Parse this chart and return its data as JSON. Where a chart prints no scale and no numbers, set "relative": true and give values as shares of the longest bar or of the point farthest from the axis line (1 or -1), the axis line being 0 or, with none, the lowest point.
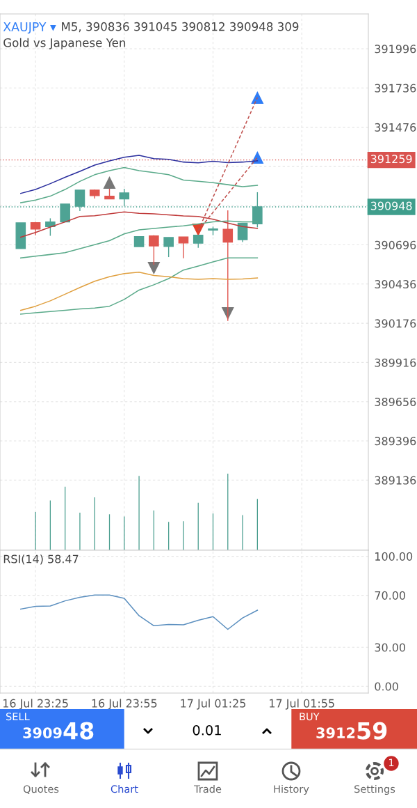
{
  "chart_data": [
    {
      "type": "candlestick",
      "title": "XAUJPY ▾",
      "subtitle": "Gold vs Japanese Yen",
      "annotations": [
        "M5, 390836 391045 390812 390948 309"
      ],
      "categories": [
        null,
        null,
        null,
        null,
        null,
        null,
        null,
        null,
        null,
        null,
        null,
        null,
        null,
        null,
        null,
        null,
        null,
        null,
        null,
        null,
        null,
        null,
        null,
        null
      ],
      "ohlc": [
        [
          390671,
          390842,
          390671,
          390842
        ],
        [
          390843,
          390848,
          390760,
          390801
        ],
        [
          390817,
          390872,
          390756,
          390848
        ],
        [
          390848,
          390966,
          390848,
          390966
        ],
        [
          390952,
          391059,
          390920,
          391059
        ],
        [
          391059,
          391062,
          391003,
          391022
        ],
        [
          391019,
          391068,
          391001,
          391001
        ],
        [
          391001,
          391068,
          390952,
          391040
        ],
        [
          390684,
          390751,
          390684,
          390751
        ],
        [
          390755,
          390760,
          390564,
          390689
        ],
        [
          390685,
          390745,
          390615,
          390745
        ],
        [
          390748,
          390748,
          390607,
          390708
        ],
        [
          390707,
          390760,
          390676,
          390760
        ],
        [
          390794,
          390817,
          390760,
          390801
        ],
        [
          390799,
          390925,
          390191,
          390714
        ],
        [
          390730,
          390840,
          390715,
          390840
        ],
        [
          390836,
          391045,
          390812,
          390948
        ],
        null,
        null,
        null,
        null,
        null,
        null,
        null
      ],
      "colors": [
        "#4ea394",
        "#e0564f",
        "#4ea394",
        "#4ea394",
        "#4ea394",
        "#e0564f",
        "#e0564f",
        "#4ea394",
        "#4ea394",
        "#e0564f",
        "#4ea394",
        "#e0564f",
        "#4ea394",
        "#4ea394",
        "#e0564f",
        "#4ea394",
        "#4ea394",
        null,
        null,
        null,
        null,
        null,
        null,
        null
      ],
      "series": [
        {
          "type": "line",
          "color": "#2b2f9e",
          "values": [
            391037,
            391063,
            391102,
            391144,
            391183,
            391225,
            391253,
            391277,
            391289,
            391268,
            391263,
            391245,
            391240,
            391250,
            391241,
            391245,
            391253,
            null,
            null,
            null,
            null,
            null,
            null,
            null
          ]
        },
        {
          "type": "line",
          "color": "#5aaa8a",
          "values": [
            390975,
            390993,
            391019,
            391063,
            391117,
            391161,
            391188,
            391209,
            391188,
            391175,
            391161,
            391126,
            391117,
            391108,
            391095,
            391082,
            391091,
            null,
            null,
            null,
            null,
            null,
            null,
            null
          ]
        },
        {
          "type": "line",
          "color": "#c03a3a",
          "values": [
            390747,
            390778,
            390814,
            390848,
            390884,
            390889,
            390902,
            390914,
            390905,
            390902,
            390895,
            390888,
            390884,
            390866,
            390840,
            390817,
            390805,
            null,
            null,
            null,
            null,
            null,
            null,
            null
          ]
        },
        {
          "type": "line",
          "color": "#5aaa8a",
          "values": [
            390609,
            390621,
            390632,
            390644,
            390671,
            390697,
            390724,
            390769,
            390795,
            390805,
            390814,
            390822,
            390835,
            390848,
            390854,
            390848,
            390848,
            null,
            null,
            null,
            null,
            null,
            null,
            null
          ]
        },
        {
          "type": "line",
          "color": "#5aaa8a",
          "values": [
            390237,
            390246,
            390254,
            390262,
            390271,
            390277,
            390289,
            390334,
            390396,
            390431,
            390472,
            390529,
            390555,
            390583,
            390609,
            390609,
            390609,
            null,
            null,
            null,
            null,
            null,
            null,
            null
          ]
        },
        {
          "type": "line",
          "color": "#e0a040",
          "values": [
            390262,
            390289,
            390325,
            390369,
            390413,
            390455,
            390485,
            390506,
            390515,
            390493,
            390485,
            390472,
            390467,
            390472,
            390467,
            390470,
            390476,
            null,
            null,
            null,
            null,
            null,
            null,
            null
          ]
        },
        {
          "type": "line",
          "color": "#c0504d",
          "line_style": "dashed",
          "values": [
            null,
            null,
            null,
            null,
            null,
            null,
            null,
            null,
            null,
            null,
            null,
            null,
            390790,
            null,
            null,
            null,
            391673,
            null,
            null,
            null,
            null,
            null,
            null,
            null
          ]
        },
        {
          "type": "line",
          "color": "#c0504d",
          "line_style": "dashed",
          "values": [
            null,
            null,
            null,
            null,
            null,
            null,
            null,
            null,
            null,
            null,
            null,
            null,
            390790,
            null,
            null,
            null,
            391276,
            null,
            null,
            null,
            null,
            null,
            null,
            null
          ]
        },
        {
          "type": "scatter",
          "color": "#777777",
          "marker": "triangle",
          "values": [
            null,
            null,
            null,
            null,
            null,
            null,
            391109,
            null,
            null,
            null,
            null,
            null,
            null,
            null,
            null,
            null,
            null,
            null,
            null,
            null,
            null,
            null,
            null,
            null
          ]
        },
        {
          "type": "scatter",
          "color": "#777777",
          "marker": "triangle-down",
          "values": [
            null,
            null,
            null,
            null,
            null,
            null,
            null,
            null,
            null,
            390541,
            null,
            null,
            null,
            null,
            390241,
            null,
            null,
            null,
            null,
            null,
            null,
            null,
            null,
            null
          ]
        },
        {
          "type": "scatter",
          "color": "#e0402a",
          "marker": "triangle-down",
          "values": [
            null,
            null,
            null,
            null,
            null,
            null,
            null,
            null,
            null,
            null,
            null,
            null,
            390795,
            null,
            null,
            null,
            null,
            null,
            null,
            null,
            null,
            null,
            null,
            null
          ]
        },
        {
          "type": "scatter",
          "color": "#2f7df6",
          "marker": "triangle",
          "values": [
            null,
            null,
            null,
            null,
            null,
            null,
            null,
            null,
            null,
            null,
            null,
            null,
            null,
            null,
            null,
            null,
            391673,
            null,
            null,
            null,
            null,
            null,
            null,
            null
          ]
        },
        {
          "type": "scatter",
          "color": "#2f7df6",
          "marker": "triangle",
          "values": [
            null,
            null,
            null,
            null,
            null,
            null,
            null,
            null,
            null,
            null,
            null,
            null,
            null,
            null,
            null,
            null,
            391276,
            null,
            null,
            null,
            null,
            null,
            null,
            null
          ]
        }
      ],
      "ylim": [
        388671,
        392227
      ],
      "yticks": [
        389136,
        389396,
        389656,
        389916,
        390176,
        390436,
        390696,
        {
          "value": 390956,
          "label": null
        },
        {
          "value": 391216,
          "label": null
        },
        391476,
        391736,
        391996
      ],
      "ref_lines": [
        {
          "axis": "y",
          "value": 391259,
          "label": "391259",
          "color": "#d9534f",
          "line_style": "dotted"
        },
        {
          "axis": "y",
          "value": 390948,
          "label": "390948",
          "color": "#3f9e8c",
          "line_style": "dotted"
        }
      ],
      "grid": true,
      "tick_labels": "y"
    },
    {
      "type": "bar",
      "relative": true,
      "color": "#4a9e8f",
      "categories": [
        null,
        null,
        null,
        null,
        null,
        null,
        null,
        null,
        null,
        null,
        null,
        null,
        null,
        null,
        null,
        null,
        null,
        null,
        null,
        null,
        null,
        null,
        null,
        null
      ],
      "values": [
        null,
        0.5,
        0.65,
        0.83,
        0.49,
        0.69,
        0.47,
        0.44,
        0.97,
        0.52,
        0.37,
        0.38,
        0.62,
        0.48,
        1,
        0.46,
        0.67,
        null,
        null,
        null,
        null,
        null,
        null,
        null
      ],
      "tick_labels": false
    },
    {
      "type": "line",
      "title": "RSI(14) 58.47",
      "color": "#5b8fbf",
      "categories": [
        null,
        "16 Jul 23:25",
        null,
        null,
        null,
        null,
        null,
        "16 Jul 23:55",
        null,
        null,
        null,
        null,
        null,
        "17 Jul 01:25",
        null,
        null,
        null,
        null,
        null,
        "17 Jul 01:55",
        null,
        null,
        null,
        null
      ],
      "values": [
        59.4,
        61.5,
        61.7,
        65.7,
        68.5,
        70.2,
        70.2,
        67.7,
        54.3,
        46.6,
        47.5,
        47.3,
        50.8,
        53.6,
        43.8,
        52.6,
        58.47,
        null,
        null,
        null,
        null,
        null,
        null,
        null
      ],
      "ylim": [
        -5.2,
        104.6
      ],
      "yticks": [
        {
          "value": 0,
          "label": "0.00"
        },
        {
          "value": 30,
          "label": "30.00"
        },
        {
          "value": 70,
          "label": "70.00"
        },
        {
          "value": 100,
          "label": "100.00"
        }
      ],
      "grid": true
    },
    {
      "type": "other",
      "colors": [
        "#3478f6",
        "#d9493a",
        "#2a4bd0"
      ],
      "annotations": [
        "SELL",
        "3909",
        "48",
        "0.01",
        "BUY",
        "3912",
        "59",
        "Quotes",
        "Chart",
        "Trade",
        "History",
        "Settings",
        "1"
      ]
    }
  ]
}
